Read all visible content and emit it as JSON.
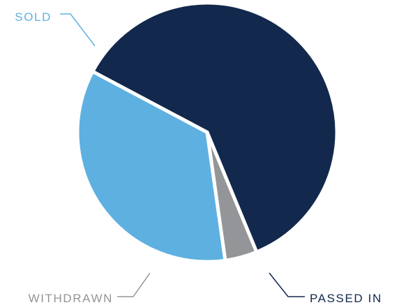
{
  "chart_data": {
    "type": "pie",
    "title": "",
    "slices": [
      {
        "label": "PASSED IN",
        "value": 61,
        "color": "#12284c"
      },
      {
        "label": "WITHDRAWN",
        "value": 4,
        "color": "#939598"
      },
      {
        "label": "SOLD",
        "value": 35,
        "color": "#5eb0e1"
      }
    ],
    "legend": "none",
    "label_placement": "outside-callouts"
  }
}
